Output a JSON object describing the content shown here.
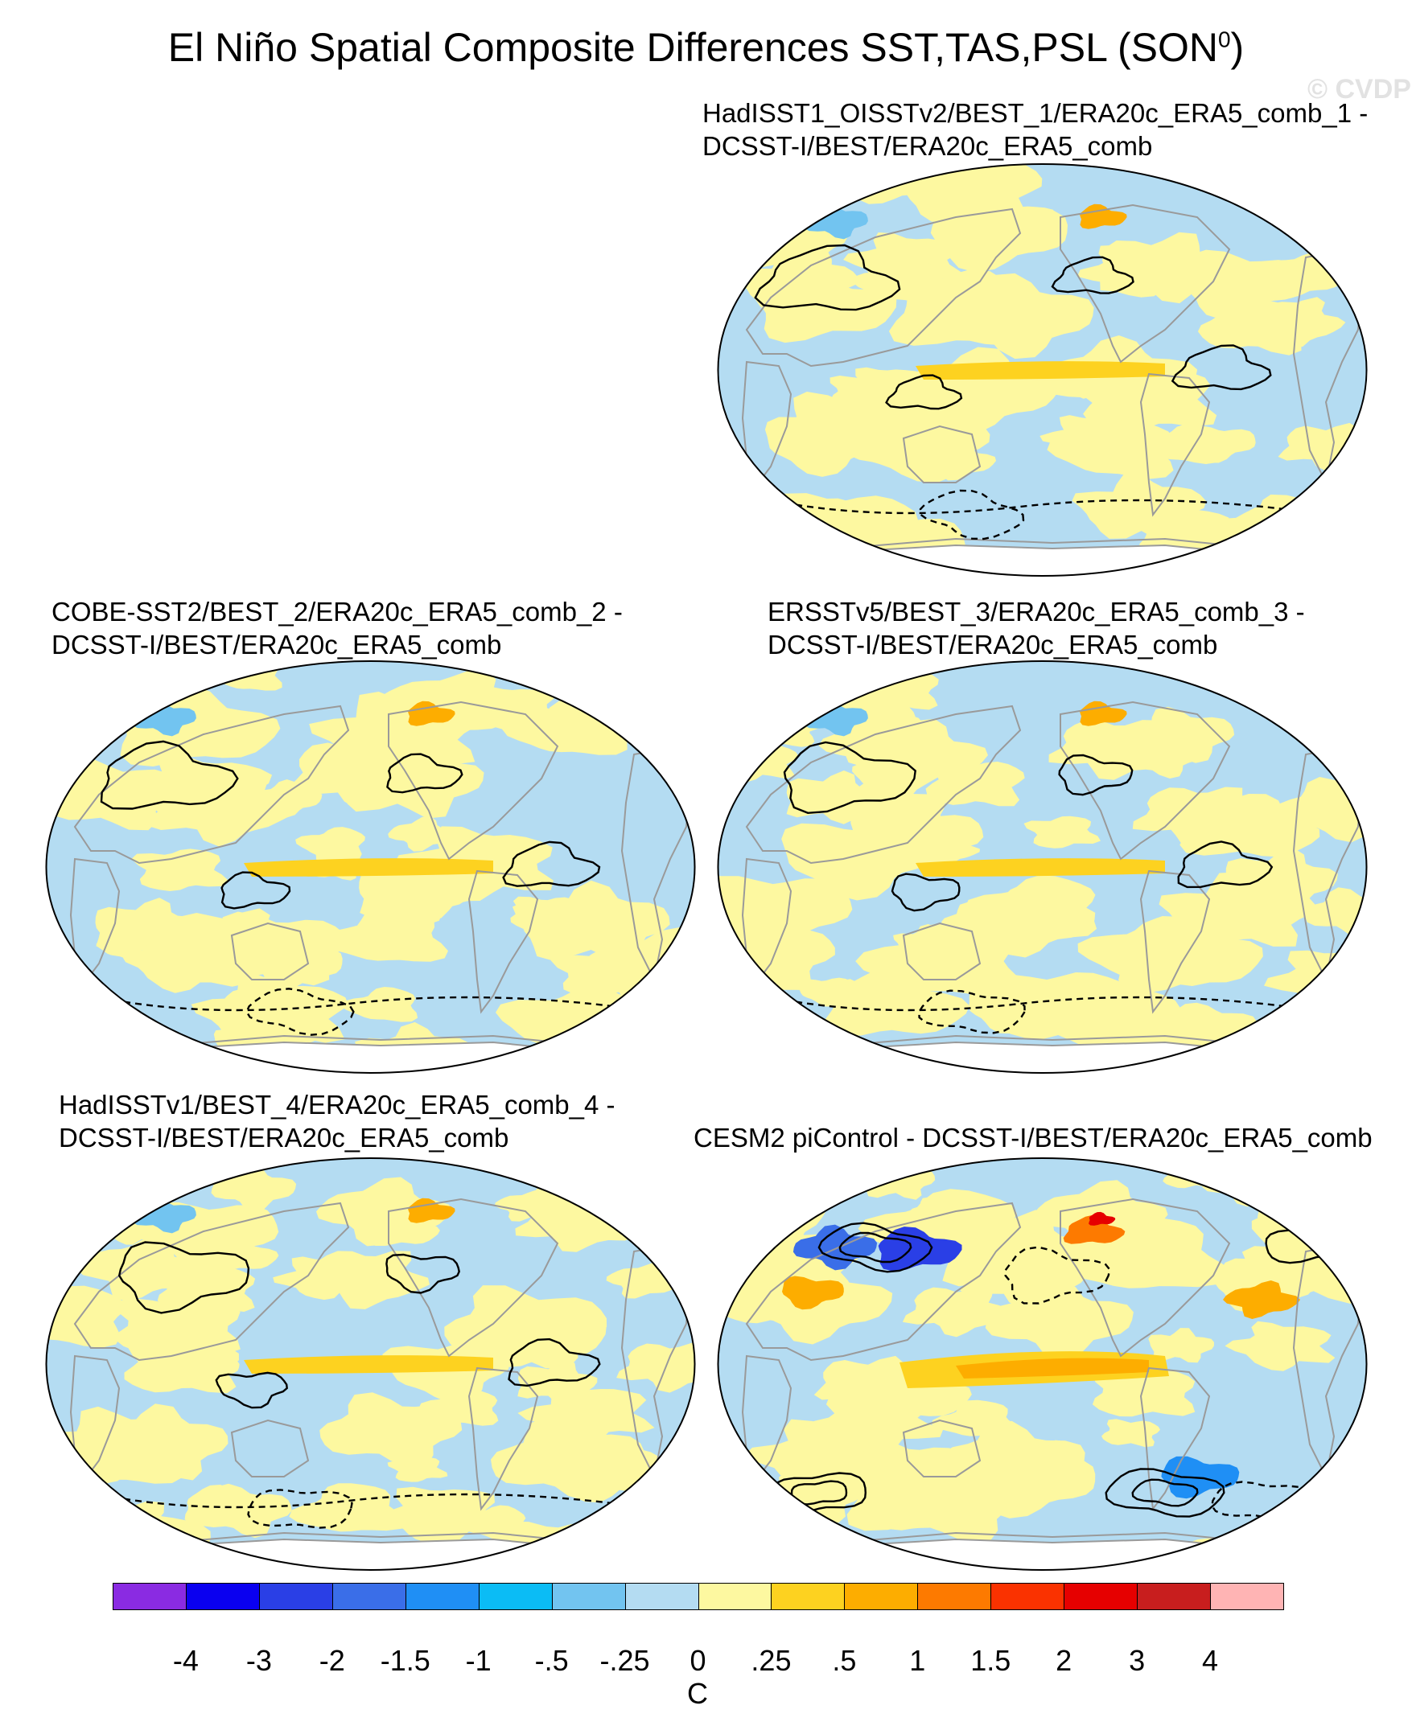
{
  "figure": {
    "title": "El Niño Spatial Composite Differences SST,TAS,PSL (SON",
    "title_superscript": "0",
    "title_suffix": ")",
    "watermark": "© CVDP"
  },
  "panels": [
    {
      "id": "p1",
      "title": "HadISST1_OISSTv2/BEST_1/ERA20c_ERA5_comb_1 -\nDCSST-I/BEST/ERA20c_ERA5_comb",
      "amplitude": "weak"
    },
    {
      "id": "p2",
      "title": "COBE-SST2/BEST_2/ERA20c_ERA5_comb_2 -\nDCSST-I/BEST/ERA20c_ERA5_comb",
      "amplitude": "weak"
    },
    {
      "id": "p3",
      "title": "ERSSTv5/BEST_3/ERA20c_ERA5_comb_3 -\nDCSST-I/BEST/ERA20c_ERA5_comb",
      "amplitude": "weak"
    },
    {
      "id": "p4",
      "title": "HadISSTv1/BEST_4/ERA20c_ERA5_comb_4 -\nDCSST-I/BEST/ERA20c_ERA5_comb",
      "amplitude": "weak"
    },
    {
      "id": "p5",
      "title": "CESM2 piControl - DCSST-I/BEST/ERA20c_ERA5_comb",
      "amplitude": "strong"
    }
  ],
  "colorbar": {
    "colors": [
      "#8a2be2",
      "#0a00f0",
      "#2a3fe6",
      "#3a6ee8",
      "#1f8ff5",
      "#0bbcf5",
      "#72c4f0",
      "#b4dcf2",
      "#fdf8a0",
      "#fdd220",
      "#fdad00",
      "#fd7a00",
      "#fa3200",
      "#e60000",
      "#c81e1e",
      "#ffb4b4"
    ],
    "labels": [
      "-4",
      "-3",
      "-2",
      "-1.5",
      "-1",
      "-.5",
      "-.25",
      "0",
      ".25",
      ".5",
      "1",
      "1.5",
      "2",
      "3",
      "4"
    ],
    "units": "C"
  }
}
